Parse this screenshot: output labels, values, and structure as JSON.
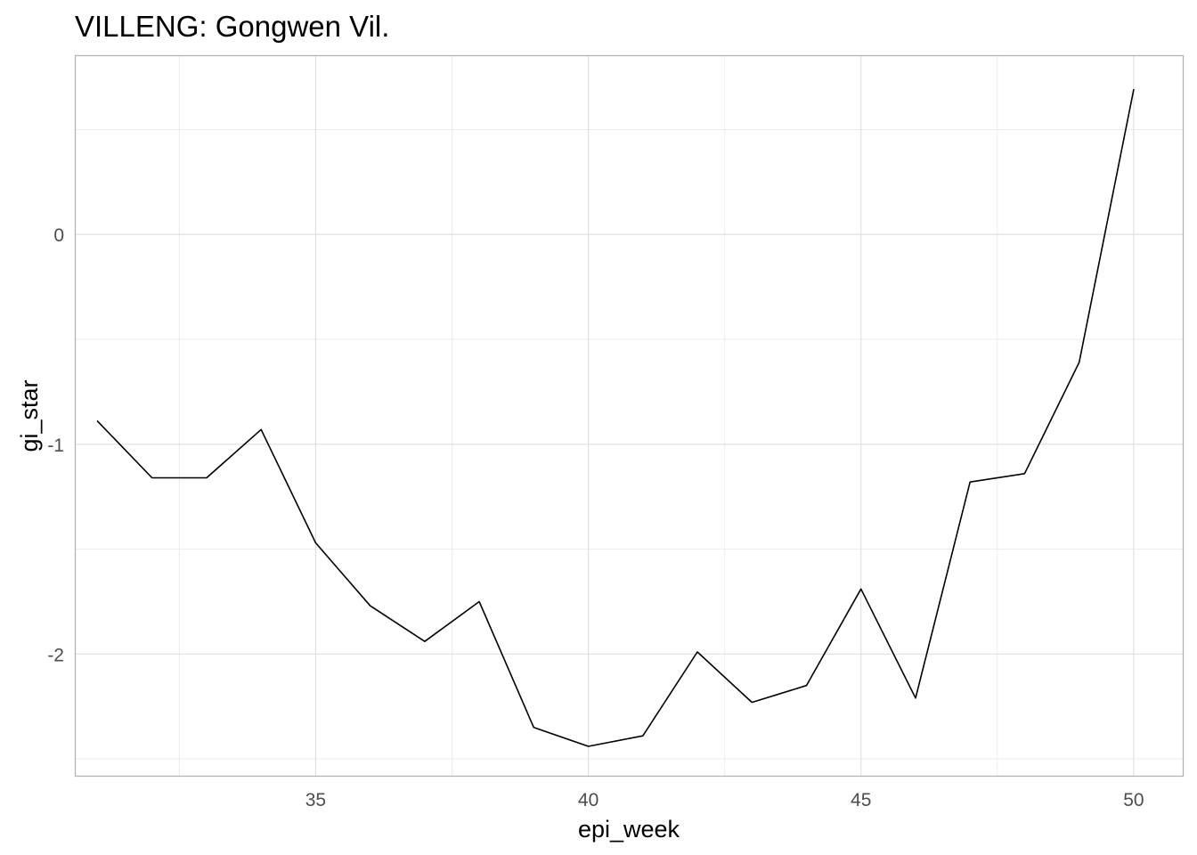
{
  "chart_data": {
    "type": "line",
    "title": "VILLENG: Gongwen Vil.",
    "xlabel": "epi_week",
    "ylabel": "gi_star",
    "x_ticks": [
      35,
      40,
      45,
      50
    ],
    "x_tick_labels": [
      "35",
      "40",
      "45",
      "50"
    ],
    "y_ticks": [
      -2,
      -1,
      0
    ],
    "y_tick_labels": [
      "-2",
      "-1",
      "0"
    ],
    "xlim": [
      30.6,
      50.9
    ],
    "ylim": [
      -2.58,
      0.85
    ],
    "grid": true,
    "series": [
      {
        "color": "#000000",
        "x": [
          31,
          32,
          33,
          34,
          35,
          36,
          37,
          38,
          39,
          40,
          41,
          42,
          43,
          44,
          45,
          46,
          47,
          48,
          49,
          50
        ],
        "y": [
          -0.89,
          -1.16,
          -1.16,
          -0.93,
          -1.47,
          -1.77,
          -1.94,
          -1.75,
          -2.35,
          -2.44,
          -2.39,
          -1.99,
          -2.23,
          -2.15,
          -1.69,
          -2.21,
          -1.18,
          -1.14,
          -0.61,
          0.69
        ]
      }
    ]
  }
}
